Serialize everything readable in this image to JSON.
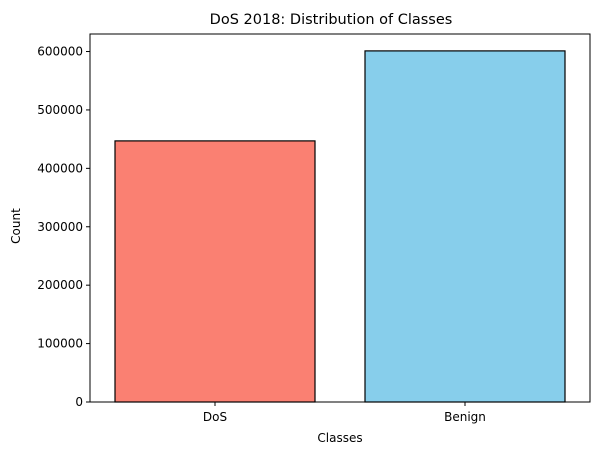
{
  "chart_data": {
    "type": "bar",
    "title": "DoS 2018: Distribution of Classes",
    "xlabel": "Classes",
    "ylabel": "Count",
    "categories": [
      "DoS",
      "Benign"
    ],
    "values": [
      447000,
      601000
    ],
    "ylim": [
      0,
      630000
    ],
    "yticks": [
      0,
      100000,
      200000,
      300000,
      400000,
      500000,
      600000
    ],
    "colors": [
      "#fa8072",
      "#87ceeb"
    ],
    "edge_color": "#000000",
    "grid": false,
    "legend": "none"
  }
}
